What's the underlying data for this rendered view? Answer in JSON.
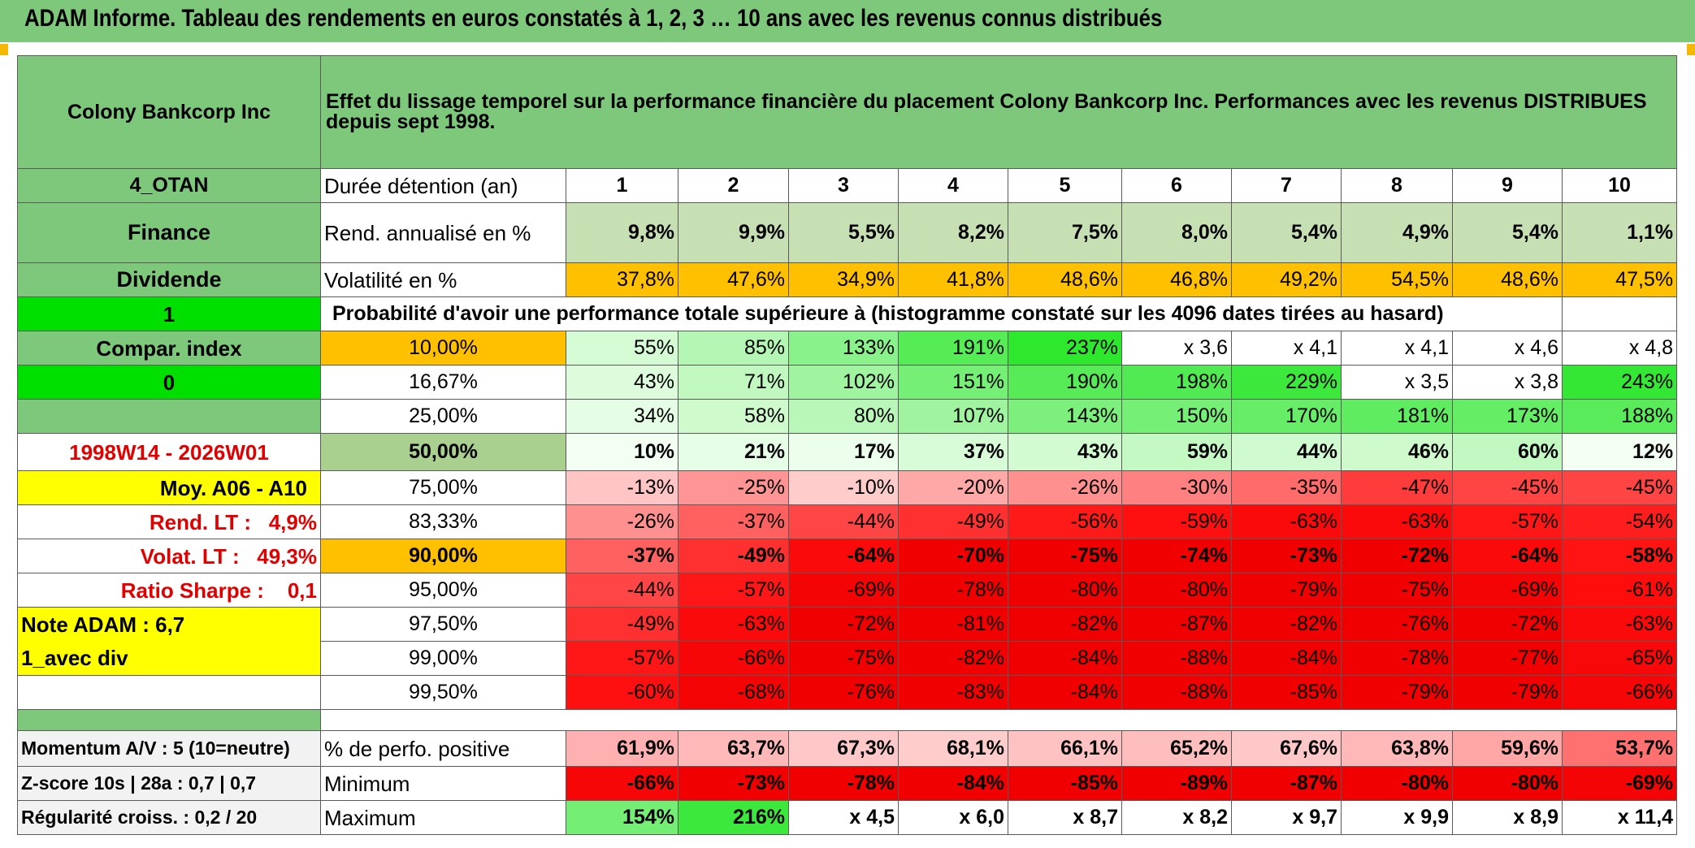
{
  "title": "ADAM Informe. Tableau des rendements en euros constatés à 1, 2, 3 … 10 ans avec les revenus connus distribués",
  "colors": {
    "header_green": "#7ec87c",
    "light_green": "#c6e0b4",
    "bright_green": "#00e000",
    "orange": "#ffc000",
    "yellow": "#ffff00",
    "red_text": "#e00000"
  },
  "left": {
    "company": "Colony Bankcorp Inc",
    "code": "4_OTAN",
    "sector": "Finance",
    "type": "Dividende",
    "flag1": "1",
    "compar_index": "Compar. index",
    "flag0": "0",
    "period": "1998W14 - 2026W01",
    "moy": "Moy. A06 - A10",
    "rend_lt": "Rend. LT :   4,9%",
    "volat_lt": "Volat. LT :   49,3%",
    "sharpe": "Ratio Sharpe :    0,1",
    "note": "Note ADAM : 6,7",
    "avec_div": "1_avec div",
    "momentum": "Momentum A/V : 5 (10=neutre)",
    "zscore": "Z-score 10s | 28a : 0,7 | 0,7",
    "regularite": "Régularité croiss. : 0,2 / 20"
  },
  "description": "Effet du lissage temporel sur la performance financière du placement Colony Bankcorp Inc. Performances avec les revenus DISTRIBUES depuis sept 1998.",
  "labels": {
    "duree": "Durée détention (an)",
    "rend": "Rend. annualisé en %",
    "volat": "Volatilité en %",
    "proba": "Probabilité d'avoir une performance totale supérieure à (histogramme constaté sur les 4096 dates tirées au hasard)",
    "perfo_pos": "% de perfo. positive",
    "minimum": "Minimum",
    "maximum": "Maximum"
  },
  "years": [
    "1",
    "2",
    "3",
    "4",
    "5",
    "6",
    "7",
    "8",
    "9",
    "10"
  ],
  "rend": [
    "9,8%",
    "9,9%",
    "5,5%",
    "8,2%",
    "7,5%",
    "8,0%",
    "5,4%",
    "4,9%",
    "5,4%",
    "1,1%"
  ],
  "volat": [
    "37,8%",
    "47,6%",
    "34,9%",
    "41,8%",
    "48,6%",
    "46,8%",
    "49,2%",
    "54,5%",
    "48,6%",
    "47,5%"
  ],
  "volat_colors": [
    "#ffc000",
    "#ffc000",
    "#ffc000",
    "#ffc000",
    "#ffc000",
    "#ffc000",
    "#ffc000",
    "#ffc000",
    "#ffc000",
    "#ffc000"
  ],
  "quantiles": [
    {
      "label": "10,00%",
      "label_bg": "#ffc000",
      "bold": false,
      "values": [
        "55%",
        "85%",
        "133%",
        "191%",
        "237%",
        "x 3,6",
        "x 4,1",
        "x 4,1",
        "x 4,6",
        "x 4,8"
      ],
      "colors": [
        "#d4fbd4",
        "#b4f7b4",
        "#8af28a",
        "#55ec55",
        "#2ee82e",
        "#ffffff",
        "#ffffff",
        "#ffffff",
        "#ffffff",
        "#ffffff"
      ]
    },
    {
      "label": "16,67%",
      "label_bg": "#ffffff",
      "bold": false,
      "values": [
        "43%",
        "71%",
        "102%",
        "151%",
        "190%",
        "198%",
        "229%",
        "x 3,5",
        "x 3,8",
        "243%"
      ],
      "colors": [
        "#dcfcdc",
        "#c0f8c0",
        "#a0f4a0",
        "#76ef76",
        "#58eb58",
        "#52ea52",
        "#3ce83c",
        "#ffffff",
        "#ffffff",
        "#34e734"
      ]
    },
    {
      "label": "25,00%",
      "label_bg": "#ffffff",
      "bold": false,
      "values": [
        "34%",
        "58%",
        "80%",
        "107%",
        "143%",
        "150%",
        "170%",
        "181%",
        "173%",
        "188%"
      ],
      "colors": [
        "#e4fde4",
        "#cefacc",
        "#b8f7b8",
        "#a0f4a0",
        "#7cef7c",
        "#76ef76",
        "#68ed68",
        "#60ec60",
        "#66ed66",
        "#5aeb5a"
      ]
    },
    {
      "label": "50,00%",
      "label_bg": "#a9d08e",
      "bold": true,
      "values": [
        "10%",
        "21%",
        "17%",
        "37%",
        "43%",
        "59%",
        "44%",
        "46%",
        "60%",
        "12%"
      ],
      "colors": [
        "#f4fff4",
        "#e6fde6",
        "#ecfeec",
        "#d8fbd8",
        "#d2fbd2",
        "#c4f9c4",
        "#d0fad0",
        "#cefacc",
        "#c2f9c2",
        "#f2fff2"
      ]
    },
    {
      "label": "75,00%",
      "label_bg": "#ffffff",
      "bold": false,
      "values": [
        "-13%",
        "-25%",
        "-10%",
        "-20%",
        "-26%",
        "-30%",
        "-35%",
        "-47%",
        "-45%",
        "-45%"
      ],
      "colors": [
        "#ffc4c4",
        "#ff9494",
        "#ffcccc",
        "#ffa8a8",
        "#ff9090",
        "#ff8080",
        "#ff6a6a",
        "#ff3c3c",
        "#ff4444",
        "#ff4444"
      ]
    },
    {
      "label": "83,33%",
      "label_bg": "#ffffff",
      "bold": false,
      "values": [
        "-26%",
        "-37%",
        "-44%",
        "-49%",
        "-56%",
        "-59%",
        "-63%",
        "-63%",
        "-57%",
        "-54%"
      ],
      "colors": [
        "#ff9090",
        "#ff6060",
        "#ff4646",
        "#ff3030",
        "#ff1a1a",
        "#ff1010",
        "#fa0a0a",
        "#fa0a0a",
        "#ff1616",
        "#ff1e1e"
      ]
    },
    {
      "label": "90,00%",
      "label_bg": "#ffc000",
      "bold": true,
      "values": [
        "-37%",
        "-49%",
        "-64%",
        "-70%",
        "-75%",
        "-74%",
        "-73%",
        "-72%",
        "-64%",
        "-58%"
      ],
      "colors": [
        "#ff6060",
        "#ff3030",
        "#fa0a0a",
        "#f00000",
        "#f00000",
        "#f00000",
        "#f00000",
        "#f00000",
        "#fa0a0a",
        "#ff1414"
      ]
    },
    {
      "label": "95,00%",
      "label_bg": "#ffffff",
      "bold": false,
      "values": [
        "-44%",
        "-57%",
        "-69%",
        "-78%",
        "-80%",
        "-80%",
        "-79%",
        "-75%",
        "-69%",
        "-61%"
      ],
      "colors": [
        "#ff4646",
        "#ff1616",
        "#f40404",
        "#f00000",
        "#f00000",
        "#f00000",
        "#f00000",
        "#f00000",
        "#f40404",
        "#ff0c0c"
      ]
    },
    {
      "label": "97,50%",
      "label_bg": "#ffffff",
      "bold": false,
      "values": [
        "-49%",
        "-63%",
        "-72%",
        "-81%",
        "-82%",
        "-87%",
        "-82%",
        "-76%",
        "-72%",
        "-63%"
      ],
      "colors": [
        "#ff3030",
        "#fa0a0a",
        "#f00000",
        "#f00000",
        "#f00000",
        "#f00000",
        "#f00000",
        "#f00000",
        "#f00000",
        "#fa0a0a"
      ]
    },
    {
      "label": "99,00%",
      "label_bg": "#ffffff",
      "bold": false,
      "values": [
        "-57%",
        "-66%",
        "-75%",
        "-82%",
        "-84%",
        "-88%",
        "-84%",
        "-78%",
        "-77%",
        "-65%"
      ],
      "colors": [
        "#ff1616",
        "#f60606",
        "#f00000",
        "#f00000",
        "#f00000",
        "#f00000",
        "#f00000",
        "#f00000",
        "#f00000",
        "#f80808"
      ]
    },
    {
      "label": "99,50%",
      "label_bg": "#ffffff",
      "bold": false,
      "values": [
        "-60%",
        "-68%",
        "-76%",
        "-83%",
        "-84%",
        "-88%",
        "-85%",
        "-79%",
        "-79%",
        "-66%"
      ],
      "colors": [
        "#ff1010",
        "#f40404",
        "#f00000",
        "#f00000",
        "#f00000",
        "#f00000",
        "#f00000",
        "#f00000",
        "#f00000",
        "#f60606"
      ]
    }
  ],
  "perfo_pos": [
    "61,9%",
    "63,7%",
    "67,3%",
    "68,1%",
    "66,1%",
    "65,2%",
    "67,6%",
    "63,8%",
    "59,6%",
    "53,7%"
  ],
  "perfo_pos_colors": [
    "#ffb0b0",
    "#ffb8b8",
    "#ffc8c8",
    "#ffcccc",
    "#ffc2c2",
    "#ffbebe",
    "#ffc8c8",
    "#ffb8b8",
    "#ffa6a6",
    "#ff7070"
  ],
  "minimum": [
    "-66%",
    "-73%",
    "-78%",
    "-84%",
    "-85%",
    "-89%",
    "-87%",
    "-80%",
    "-80%",
    "-69%"
  ],
  "minimum_colors": [
    "#f60606",
    "#f00000",
    "#f00000",
    "#f00000",
    "#f00000",
    "#f00000",
    "#f00000",
    "#f00000",
    "#f00000",
    "#f40404"
  ],
  "maximum": [
    "154%",
    "216%",
    "x 4,5",
    "x 6,0",
    "x 8,7",
    "x 8,2",
    "x 9,7",
    "x 9,9",
    "x 8,9",
    "x 11,4"
  ],
  "maximum_colors": [
    "#74ee74",
    "#3ce83c",
    "#ffffff",
    "#ffffff",
    "#ffffff",
    "#ffffff",
    "#ffffff",
    "#ffffff",
    "#ffffff",
    "#ffffff"
  ]
}
